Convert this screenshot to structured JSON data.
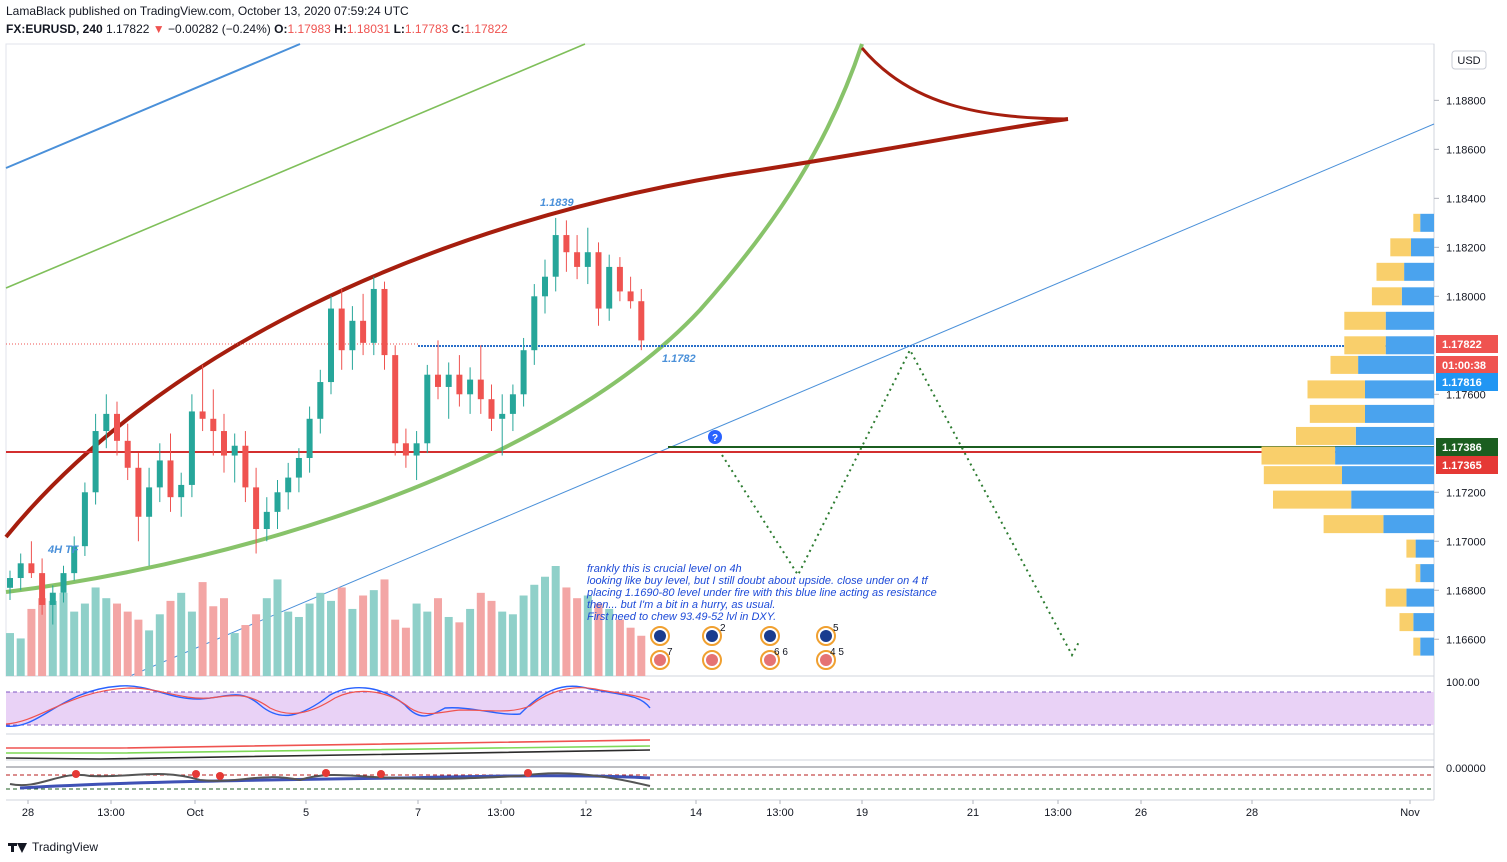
{
  "header": {
    "publisher_line": "LamaBlack published on TradingView.com, October 13, 2020 07:59:24 UTC",
    "symbol": "FX:EURUSD, 240",
    "last": "1.17822",
    "change": "−0.00282 (−0.24%)",
    "o_label": "O:",
    "o_val": "1.17983",
    "h_label": "H:",
    "h_val": "1.18031",
    "l_label": "L:",
    "l_val": "1.17783",
    "c_label": "C:",
    "c_val": "1.17822"
  },
  "currency": "USD",
  "colors": {
    "up": "#26a69a",
    "down": "#ef5350",
    "curve_red": "#a61e0e",
    "curve_green": "#7fbf5a",
    "line_blue": "#4a90d9",
    "stoch_bg": "#e9d2f6"
  },
  "annotations": {
    "high_label": "1.1839",
    "level_label": "1.1782",
    "tf_label": "4H TF",
    "note_lines": [
      "frankly this is crucial level on 4h",
      "looking like buy level, but I still doubt about upside. close under on 4 tf",
      "placing 1.1690-80 level under fire with this blue line acting as resistance",
      "then... but I'm a bit in a hurry, as usual.",
      "First need to chew 93.49-52 lvl in DXY."
    ],
    "event_counts": [
      "7",
      "2",
      "6 6",
      "5",
      "4 5"
    ]
  },
  "price_axis": {
    "ticks": [
      "1.18800",
      "1.18600",
      "1.18400",
      "1.18200",
      "1.18000",
      "1.17600",
      "1.17200",
      "1.17000",
      "1.16800",
      "1.16600"
    ],
    "tags": [
      {
        "text": "1.17822",
        "color": "#ef5350"
      },
      {
        "text": "01:00:38",
        "color": "#ef5350"
      },
      {
        "text": "1.17816",
        "color": "#2196f3"
      },
      {
        "text": "1.17386",
        "color": "#1b5e20"
      },
      {
        "text": "1.17365",
        "color": "#e53935"
      }
    ],
    "stoch_tick": "100.00",
    "osc_tick": "0.00000"
  },
  "time_axis": [
    "28",
    "13:00",
    "Oct",
    "5",
    "7",
    "13:00",
    "12",
    "14",
    "13:00",
    "19",
    "21",
    "13:00",
    "26",
    "28",
    "Nov"
  ],
  "branding": "TradingView",
  "chart_data": {
    "type": "candlestick",
    "symbol": "FX:EURUSD",
    "interval": "240",
    "y_range": [
      1.1645,
      1.1903
    ],
    "candles": [
      {
        "o": 1.1681,
        "h": 1.1688,
        "l": 1.1676,
        "c": 1.1685
      },
      {
        "o": 1.1685,
        "h": 1.1695,
        "l": 1.168,
        "c": 1.1691
      },
      {
        "o": 1.1691,
        "h": 1.17,
        "l": 1.1685,
        "c": 1.1687
      },
      {
        "o": 1.1687,
        "h": 1.1693,
        "l": 1.167,
        "c": 1.1674
      },
      {
        "o": 1.1674,
        "h": 1.1682,
        "l": 1.1666,
        "c": 1.1679
      },
      {
        "o": 1.1679,
        "h": 1.169,
        "l": 1.1675,
        "c": 1.1687
      },
      {
        "o": 1.1687,
        "h": 1.1702,
        "l": 1.1684,
        "c": 1.1698
      },
      {
        "o": 1.1698,
        "h": 1.1724,
        "l": 1.1694,
        "c": 1.172
      },
      {
        "o": 1.172,
        "h": 1.1752,
        "l": 1.1715,
        "c": 1.1745
      },
      {
        "o": 1.1745,
        "h": 1.176,
        "l": 1.1738,
        "c": 1.1752
      },
      {
        "o": 1.1752,
        "h": 1.1757,
        "l": 1.1735,
        "c": 1.1741
      },
      {
        "o": 1.1741,
        "h": 1.1748,
        "l": 1.1725,
        "c": 1.173
      },
      {
        "o": 1.173,
        "h": 1.1736,
        "l": 1.17,
        "c": 1.171
      },
      {
        "o": 1.171,
        "h": 1.173,
        "l": 1.169,
        "c": 1.1722
      },
      {
        "o": 1.1722,
        "h": 1.174,
        "l": 1.1716,
        "c": 1.1733
      },
      {
        "o": 1.1733,
        "h": 1.1744,
        "l": 1.1712,
        "c": 1.1718
      },
      {
        "o": 1.1718,
        "h": 1.1728,
        "l": 1.171,
        "c": 1.1723
      },
      {
        "o": 1.1723,
        "h": 1.176,
        "l": 1.1718,
        "c": 1.1753
      },
      {
        "o": 1.1753,
        "h": 1.1772,
        "l": 1.1745,
        "c": 1.175
      },
      {
        "o": 1.175,
        "h": 1.1762,
        "l": 1.1735,
        "c": 1.1745
      },
      {
        "o": 1.1745,
        "h": 1.1752,
        "l": 1.1728,
        "c": 1.1735
      },
      {
        "o": 1.1735,
        "h": 1.1744,
        "l": 1.1724,
        "c": 1.1739
      },
      {
        "o": 1.1739,
        "h": 1.1745,
        "l": 1.1716,
        "c": 1.1722
      },
      {
        "o": 1.1722,
        "h": 1.173,
        "l": 1.1695,
        "c": 1.1705
      },
      {
        "o": 1.1705,
        "h": 1.1718,
        "l": 1.17,
        "c": 1.1712
      },
      {
        "o": 1.1712,
        "h": 1.1725,
        "l": 1.1705,
        "c": 1.172
      },
      {
        "o": 1.172,
        "h": 1.1732,
        "l": 1.1713,
        "c": 1.1726
      },
      {
        "o": 1.1726,
        "h": 1.1738,
        "l": 1.172,
        "c": 1.1734
      },
      {
        "o": 1.1734,
        "h": 1.1755,
        "l": 1.1728,
        "c": 1.175
      },
      {
        "o": 1.175,
        "h": 1.177,
        "l": 1.1744,
        "c": 1.1765
      },
      {
        "o": 1.1765,
        "h": 1.18,
        "l": 1.176,
        "c": 1.1795
      },
      {
        "o": 1.1795,
        "h": 1.1803,
        "l": 1.177,
        "c": 1.1778
      },
      {
        "o": 1.1778,
        "h": 1.1796,
        "l": 1.177,
        "c": 1.179
      },
      {
        "o": 1.179,
        "h": 1.1801,
        "l": 1.1776,
        "c": 1.1781
      },
      {
        "o": 1.1781,
        "h": 1.1808,
        "l": 1.1776,
        "c": 1.1803
      },
      {
        "o": 1.1803,
        "h": 1.1806,
        "l": 1.177,
        "c": 1.1776
      },
      {
        "o": 1.1776,
        "h": 1.178,
        "l": 1.1735,
        "c": 1.174
      },
      {
        "o": 1.174,
        "h": 1.1746,
        "l": 1.173,
        "c": 1.1735
      },
      {
        "o": 1.1735,
        "h": 1.1745,
        "l": 1.1725,
        "c": 1.174
      },
      {
        "o": 1.174,
        "h": 1.1772,
        "l": 1.1736,
        "c": 1.1768
      },
      {
        "o": 1.1768,
        "h": 1.1782,
        "l": 1.1758,
        "c": 1.1763
      },
      {
        "o": 1.1763,
        "h": 1.1773,
        "l": 1.175,
        "c": 1.1768
      },
      {
        "o": 1.1768,
        "h": 1.1776,
        "l": 1.1755,
        "c": 1.176
      },
      {
        "o": 1.176,
        "h": 1.1771,
        "l": 1.1752,
        "c": 1.1766
      },
      {
        "o": 1.1766,
        "h": 1.178,
        "l": 1.1752,
        "c": 1.1758
      },
      {
        "o": 1.1758,
        "h": 1.1764,
        "l": 1.1745,
        "c": 1.175
      },
      {
        "o": 1.175,
        "h": 1.176,
        "l": 1.1735,
        "c": 1.1752
      },
      {
        "o": 1.1752,
        "h": 1.1764,
        "l": 1.1745,
        "c": 1.176
      },
      {
        "o": 1.176,
        "h": 1.1783,
        "l": 1.1755,
        "c": 1.1778
      },
      {
        "o": 1.1778,
        "h": 1.1805,
        "l": 1.1772,
        "c": 1.18
      },
      {
        "o": 1.18,
        "h": 1.1815,
        "l": 1.1793,
        "c": 1.1808
      },
      {
        "o": 1.1808,
        "h": 1.1832,
        "l": 1.1802,
        "c": 1.1825
      },
      {
        "o": 1.1825,
        "h": 1.1831,
        "l": 1.181,
        "c": 1.1818
      },
      {
        "o": 1.1818,
        "h": 1.1825,
        "l": 1.1807,
        "c": 1.1812
      },
      {
        "o": 1.1812,
        "h": 1.1828,
        "l": 1.1805,
        "c": 1.1818
      },
      {
        "o": 1.1818,
        "h": 1.1822,
        "l": 1.1788,
        "c": 1.1795
      },
      {
        "o": 1.1795,
        "h": 1.1817,
        "l": 1.179,
        "c": 1.1812
      },
      {
        "o": 1.1812,
        "h": 1.1816,
        "l": 1.1798,
        "c": 1.1802
      },
      {
        "o": 1.1802,
        "h": 1.1808,
        "l": 1.1795,
        "c": 1.1798
      },
      {
        "o": 1.1798,
        "h": 1.1803,
        "l": 1.1778,
        "c": 1.1782
      }
    ],
    "volume": [
      16,
      14,
      25,
      29,
      28,
      31,
      24,
      27,
      33,
      29,
      27,
      24,
      21,
      17,
      23,
      28,
      31,
      24,
      35,
      26,
      29,
      16,
      19,
      23,
      29,
      36,
      24,
      22,
      27,
      31,
      28,
      33,
      25,
      30,
      32,
      36,
      21,
      18,
      27,
      24,
      29,
      22,
      20,
      25,
      31,
      28,
      24,
      23,
      30,
      34,
      37,
      41,
      33,
      29,
      30,
      27,
      25,
      21,
      18,
      15
    ],
    "levels": {
      "horizontal_blue": 1.1782,
      "horizontal_red": 1.17365,
      "horizontal_green": 1.17386,
      "projection": [
        1.1738,
        1.1685,
        1.1782,
        1.1655
      ],
      "high_marker": 1.1839
    },
    "volume_profile": [
      {
        "price": 1.183,
        "buy": 3,
        "sell": 6
      },
      {
        "price": 1.182,
        "buy": 9,
        "sell": 10
      },
      {
        "price": 1.181,
        "buy": 12,
        "sell": 13
      },
      {
        "price": 1.18,
        "buy": 13,
        "sell": 14
      },
      {
        "price": 1.179,
        "buy": 18,
        "sell": 21
      },
      {
        "price": 1.178,
        "buy": 18,
        "sell": 21
      },
      {
        "price": 1.1772,
        "buy": 12,
        "sell": 33
      },
      {
        "price": 1.1762,
        "buy": 25,
        "sell": 30
      },
      {
        "price": 1.1752,
        "buy": 24,
        "sell": 30
      },
      {
        "price": 1.1743,
        "buy": 26,
        "sell": 34
      },
      {
        "price": 1.1735,
        "buy": 32,
        "sell": 43
      },
      {
        "price": 1.1727,
        "buy": 34,
        "sell": 40
      },
      {
        "price": 1.1717,
        "buy": 34,
        "sell": 36
      },
      {
        "price": 1.1707,
        "buy": 26,
        "sell": 22
      },
      {
        "price": 1.1697,
        "buy": 4,
        "sell": 8
      },
      {
        "price": 1.1687,
        "buy": 2,
        "sell": 6
      },
      {
        "price": 1.1677,
        "buy": 9,
        "sell": 12
      },
      {
        "price": 1.1667,
        "buy": 6,
        "sell": 9
      },
      {
        "price": 1.1657,
        "buy": 3,
        "sell": 6
      }
    ]
  }
}
